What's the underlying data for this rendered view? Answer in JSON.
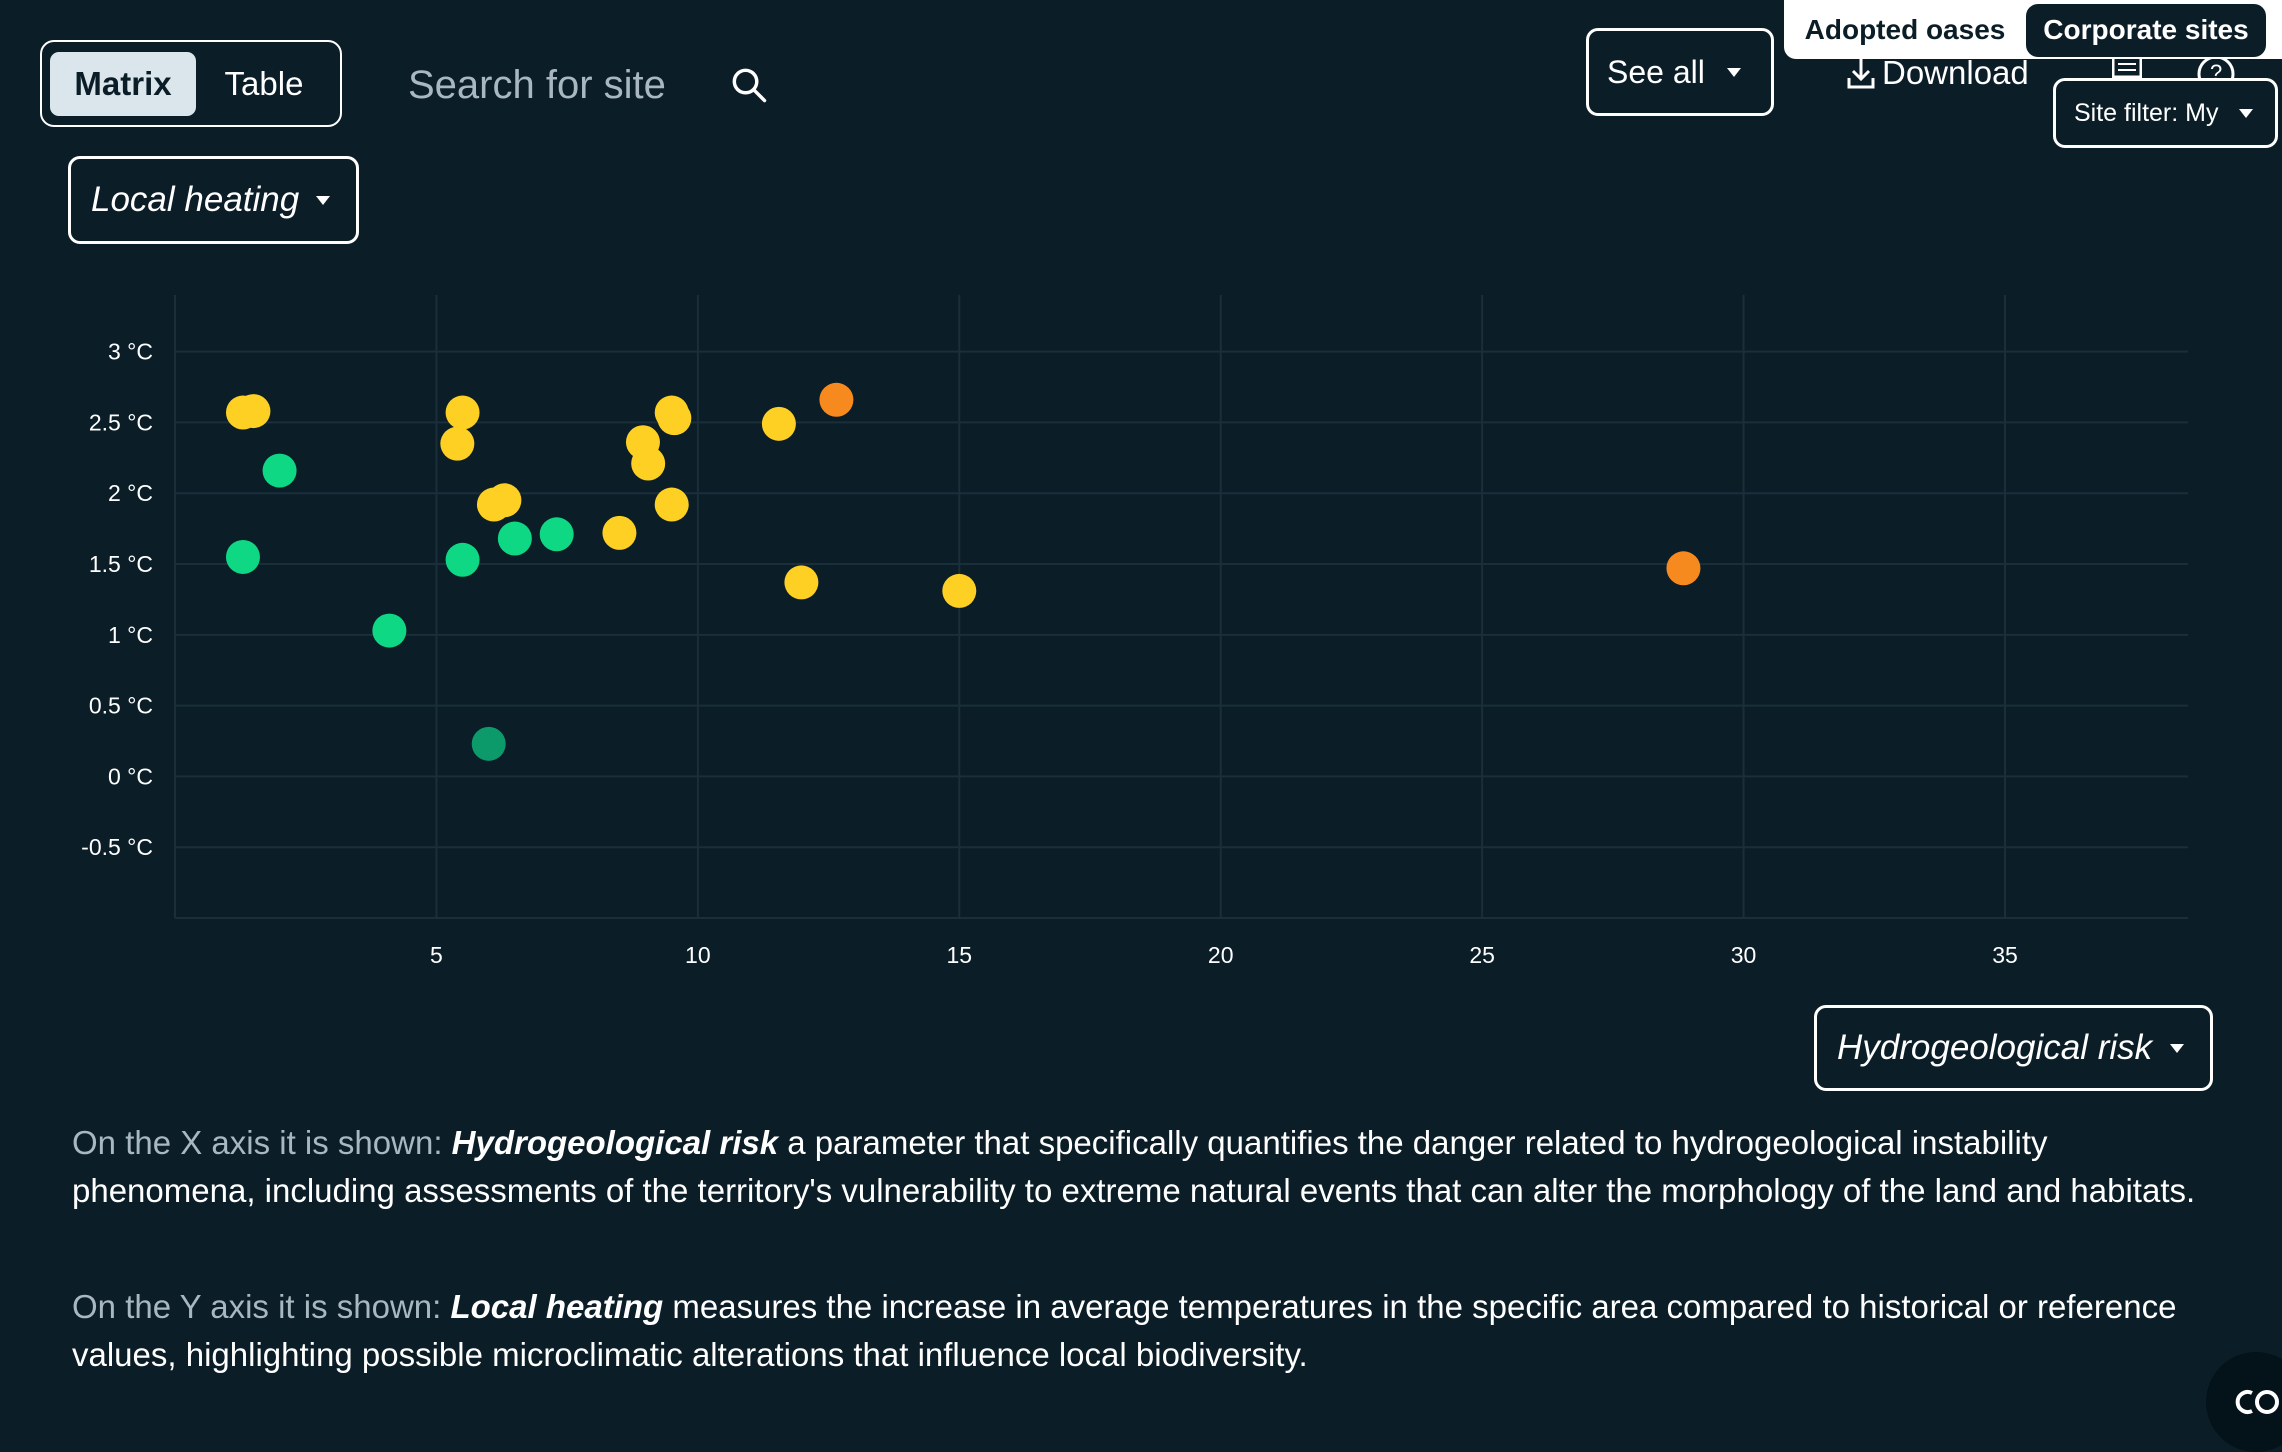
{
  "view_toggle": {
    "matrix_label": "Matrix",
    "table_label": "Table",
    "active": "Matrix"
  },
  "search": {
    "placeholder": "Search for site"
  },
  "header": {
    "see_all_label": "See all",
    "download_label": "Download",
    "site_filter_label": "Site filter: My",
    "tabs": [
      "Adopted oases",
      "Corporate sites"
    ],
    "active_tab": "Corporate sites"
  },
  "y_selector": {
    "label": "Local heating"
  },
  "x_selector": {
    "label": "Hydrogeological risk"
  },
  "colors": {
    "background": "#0b1d27",
    "green": "#0fd884",
    "dark_green": "#0c9a6b",
    "yellow": "#fdd023",
    "orange": "#f78a1f",
    "grid": "#1b2f3a"
  },
  "chart_data": {
    "type": "scatter",
    "xlabel": "",
    "ylabel": "",
    "xlim": [
      0,
      38.5
    ],
    "ylim": [
      -1,
      3.4
    ],
    "x_ticks": [
      "5",
      "10",
      "15",
      "20",
      "25",
      "30",
      "35"
    ],
    "y_ticks": [
      "3 °C",
      "2.5 °C",
      "2 °C",
      "1.5 °C",
      "1 °C",
      "0.5 °C",
      "0 °C",
      "-0.5 °C"
    ],
    "grid": true,
    "points": [
      {
        "x": 1.3,
        "y": 2.57,
        "color": "yellow"
      },
      {
        "x": 1.5,
        "y": 2.58,
        "color": "yellow"
      },
      {
        "x": 2.0,
        "y": 2.16,
        "color": "green"
      },
      {
        "x": 1.3,
        "y": 1.55,
        "color": "green"
      },
      {
        "x": 4.1,
        "y": 1.03,
        "color": "green"
      },
      {
        "x": 5.5,
        "y": 2.57,
        "color": "yellow"
      },
      {
        "x": 5.4,
        "y": 2.35,
        "color": "yellow"
      },
      {
        "x": 5.5,
        "y": 1.53,
        "color": "green"
      },
      {
        "x": 6.1,
        "y": 1.92,
        "color": "yellow"
      },
      {
        "x": 6.3,
        "y": 1.95,
        "color": "yellow"
      },
      {
        "x": 6.5,
        "y": 1.68,
        "color": "green"
      },
      {
        "x": 7.3,
        "y": 1.71,
        "color": "green"
      },
      {
        "x": 6.0,
        "y": 0.23,
        "color": "dark_green"
      },
      {
        "x": 8.5,
        "y": 1.72,
        "color": "yellow"
      },
      {
        "x": 8.95,
        "y": 2.36,
        "color": "yellow"
      },
      {
        "x": 9.05,
        "y": 2.21,
        "color": "yellow"
      },
      {
        "x": 9.5,
        "y": 2.57,
        "color": "yellow"
      },
      {
        "x": 9.55,
        "y": 2.53,
        "color": "yellow"
      },
      {
        "x": 9.5,
        "y": 1.92,
        "color": "yellow"
      },
      {
        "x": 11.55,
        "y": 2.49,
        "color": "yellow"
      },
      {
        "x": 12.65,
        "y": 2.66,
        "color": "orange"
      },
      {
        "x": 11.98,
        "y": 1.37,
        "color": "yellow"
      },
      {
        "x": 15.0,
        "y": 1.31,
        "color": "yellow"
      },
      {
        "x": 28.85,
        "y": 1.47,
        "color": "orange"
      }
    ]
  },
  "descriptions": {
    "x_lead": "On the X axis it is shown:",
    "x_term": "Hydrogeological risk",
    "x_text": " a parameter that specifically quantifies the danger related to hydrogeological instability phenomena, including assessments of the territory's vulnerability to extreme natural events that can alter the morphology of the land and habitats.",
    "y_lead": "On the Y axis it is shown:",
    "y_term": "Local heating",
    "y_text": " measures the increase in average temperatures in the specific area compared to historical or reference values, highlighting possible microclimatic alterations that influence local biodiversity."
  }
}
